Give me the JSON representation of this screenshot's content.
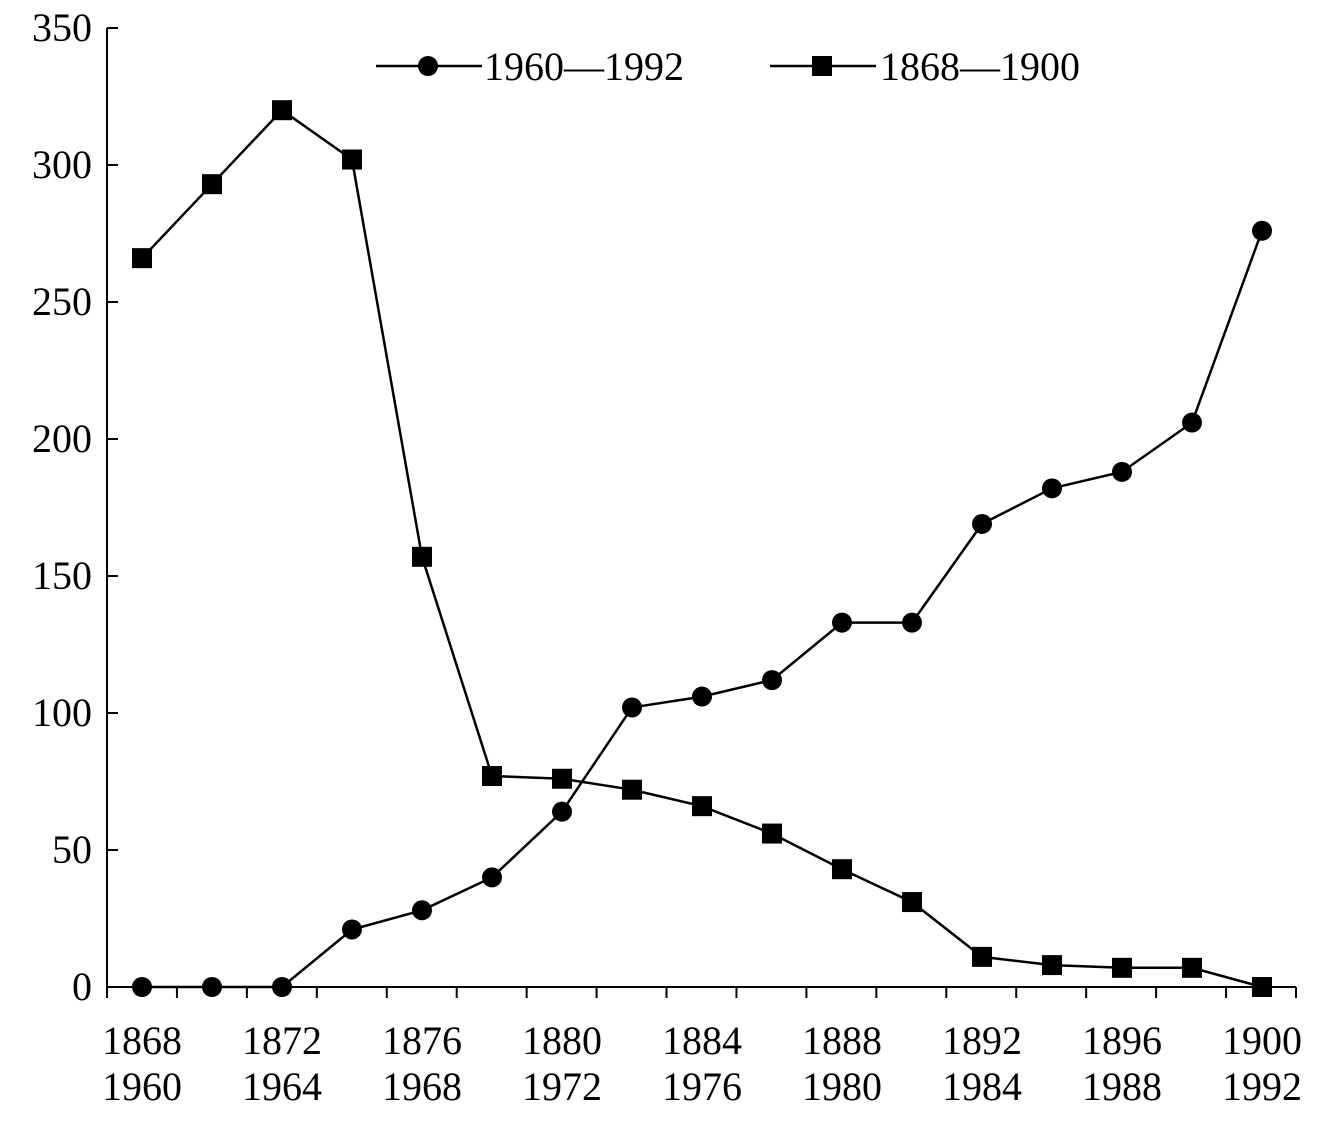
{
  "chart_data": {
    "type": "line",
    "x_labels_top": [
      "1868",
      "1872",
      "1876",
      "1880",
      "1884",
      "1888",
      "1892",
      "1896",
      "1900"
    ],
    "x_labels_bottom": [
      "1960",
      "1964",
      "1968",
      "1972",
      "1976",
      "1980",
      "1984",
      "1988",
      "1992"
    ],
    "ylim": [
      0,
      350
    ],
    "yticks": [
      0,
      50,
      100,
      150,
      200,
      250,
      300,
      350
    ],
    "legend_position": "top",
    "grid": false,
    "series": [
      {
        "name": "1960—1992",
        "marker": "circle",
        "color": "#000000",
        "values": [
          0,
          0,
          0,
          21,
          28,
          40,
          64,
          102,
          106,
          112,
          133,
          133,
          169,
          182,
          188,
          206,
          276
        ]
      },
      {
        "name": "1868—1900",
        "marker": "square",
        "color": "#000000",
        "values": [
          266,
          293,
          320,
          302,
          157,
          77,
          76,
          72,
          66,
          56,
          43,
          31,
          11,
          8,
          7,
          7,
          0
        ]
      }
    ]
  }
}
